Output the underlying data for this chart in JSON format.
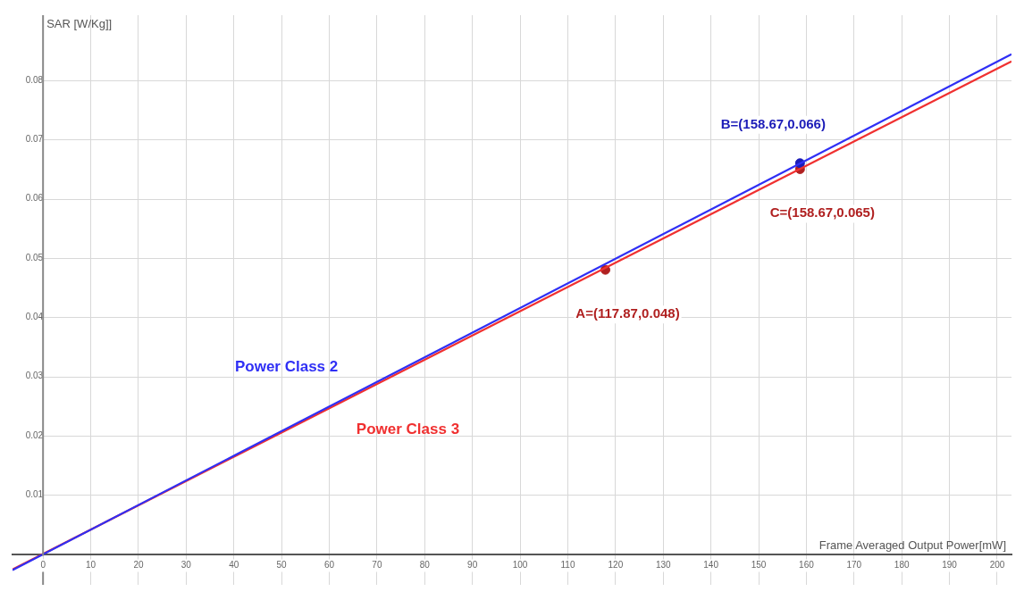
{
  "chart_data": {
    "type": "line",
    "xlabel": "Frame Averaged Output Power[mW]",
    "ylabel": "SAR [W/Kg]]",
    "xlim": [
      -6.4,
      203
    ],
    "ylim": [
      -0.0052,
      0.091
    ],
    "xticks": [
      0,
      10,
      20,
      30,
      40,
      50,
      60,
      70,
      80,
      90,
      100,
      110,
      120,
      130,
      140,
      150,
      160,
      170,
      180,
      190,
      200
    ],
    "yticks": [
      0.01,
      0.02,
      0.03,
      0.04,
      0.05,
      0.06,
      0.07,
      0.08
    ],
    "grid": true,
    "legend": false,
    "line_style": "solid",
    "series": [
      {
        "name": "Power Class 2",
        "type": "line",
        "color": "#2f2ff5",
        "marker": "none",
        "x": [
          -6.4,
          203
        ],
        "values": [
          -0.0027,
          0.0844
        ]
      },
      {
        "name": "Power Class 3",
        "type": "line",
        "color": "#f03030",
        "marker": "none",
        "x": [
          -6.4,
          203
        ],
        "values": [
          -0.0026,
          0.0832
        ]
      },
      {
        "type": "scatter",
        "color": "#1c1cb8",
        "marker": "circle",
        "x": [
          158.67
        ],
        "values": [
          0.066
        ]
      },
      {
        "type": "scatter",
        "color": "#b02020",
        "marker": "circle",
        "x": [
          158.67,
          117.87
        ],
        "values": [
          0.065,
          0.048
        ]
      }
    ],
    "annotations": [
      "B=(158.67,0.066)",
      "C=(158.67,0.065)",
      "A=(117.87,0.048)"
    ]
  }
}
